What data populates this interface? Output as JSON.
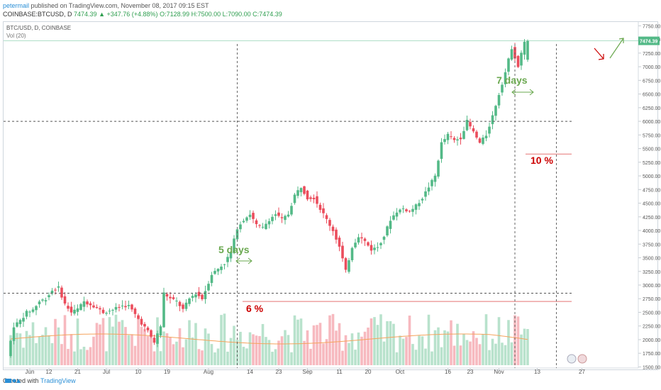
{
  "header": {
    "author": "petermail",
    "published": "published on TradingView.com, November 08, 2017 09:15 EST",
    "symbol_line_prefix": "COINBASE:BTCUSD, D",
    "last": "7474.39",
    "change": "▲ +347.76 (+4.88%)",
    "ohlc": "O:7128.99 H:7500.00 L:7090.00 C:7474.39"
  },
  "legend": {
    "title": "BTC/USD, D, COINBASE",
    "vol": "Vol (20)"
  },
  "footer": {
    "created_with": "Created with",
    "brand": "TradingView"
  },
  "colors": {
    "up": "#53b987",
    "down": "#eb4d5c",
    "vol_up": "#b8e2cc",
    "vol_down": "#f7b9bf",
    "ma": "#f5a35c",
    "annotation_green": "#6aa84f",
    "annotation_red": "#cc0000",
    "last_price": "#53b987"
  },
  "chart_data": {
    "type": "candlestick",
    "title": "BTC/USD, D, COINBASE",
    "ylim": [
      1480,
      7820
    ],
    "y_ticks": [
      1500,
      1750,
      2000,
      2250,
      2500,
      2750,
      3000,
      3250,
      3500,
      3750,
      4000,
      4250,
      4500,
      4750,
      5000,
      5250,
      5500,
      5750,
      6000,
      6250,
      6500,
      6750,
      7000,
      7250,
      7500,
      7750
    ],
    "x_ticks": [
      {
        "label": "Jun",
        "day": 6
      },
      {
        "label": "12",
        "day": 12
      },
      {
        "label": "21",
        "day": 21
      },
      {
        "label": "Jul",
        "day": 30
      },
      {
        "label": "10",
        "day": 40
      },
      {
        "label": "19",
        "day": 49
      },
      {
        "label": "Aug",
        "day": 62
      },
      {
        "label": "14",
        "day": 75
      },
      {
        "label": "23",
        "day": 84
      },
      {
        "label": "Sep",
        "day": 93
      },
      {
        "label": "11",
        "day": 103
      },
      {
        "label": "20",
        "day": 112
      },
      {
        "label": "Oct",
        "day": 122
      },
      {
        "label": "16",
        "day": 137
      },
      {
        "label": "23",
        "day": 144
      },
      {
        "label": "Nov",
        "day": 153
      },
      {
        "label": "13",
        "day": 165
      },
      {
        "label": "27",
        "day": 179
      }
    ],
    "last_price": 7474.39,
    "annotations": {
      "text_5_days": "5 days",
      "text_7_days": "7 days",
      "text_6_pct": "6 %",
      "text_10_pct": "10 %"
    },
    "levels": [
      {
        "price": 2850,
        "style": "dashed"
      },
      {
        "price": 6000,
        "style": "dashed"
      },
      {
        "price": 2700,
        "style": "solid-red"
      },
      {
        "price": 5400,
        "style": "solid-red"
      }
    ],
    "anchors": [
      {
        "price": 1700,
        "day": 0
      },
      {
        "price": 2250,
        "day": 2
      },
      {
        "price": 2350,
        "day": 4
      },
      {
        "price": 2500,
        "day": 6
      },
      {
        "price": 2550,
        "day": 8
      },
      {
        "price": 2700,
        "day": 10
      },
      {
        "price": 2750,
        "day": 12
      },
      {
        "price": 2900,
        "day": 14
      },
      {
        "price": 2950,
        "day": 16
      },
      {
        "price": 2650,
        "day": 18
      },
      {
        "price": 2500,
        "day": 20
      },
      {
        "price": 2560,
        "day": 22
      },
      {
        "price": 2700,
        "day": 24
      },
      {
        "price": 2620,
        "day": 27
      },
      {
        "price": 2500,
        "day": 30
      },
      {
        "price": 2550,
        "day": 33
      },
      {
        "price": 2620,
        "day": 36
      },
      {
        "price": 2620,
        "day": 38
      },
      {
        "price": 2380,
        "day": 41
      },
      {
        "price": 2150,
        "day": 44
      },
      {
        "price": 1950,
        "day": 46
      },
      {
        "price": 2250,
        "day": 48
      },
      {
        "price": 2850,
        "day": 49
      },
      {
        "price": 2750,
        "day": 51
      },
      {
        "price": 2700,
        "day": 53
      },
      {
        "price": 2550,
        "day": 55
      },
      {
        "price": 2750,
        "day": 57
      },
      {
        "price": 2850,
        "day": 59
      },
      {
        "price": 2750,
        "day": 61
      },
      {
        "price": 2900,
        "day": 62
      },
      {
        "price": 3200,
        "day": 64
      },
      {
        "price": 3300,
        "day": 66
      },
      {
        "price": 3400,
        "day": 68
      },
      {
        "price": 3600,
        "day": 70
      },
      {
        "price": 4050,
        "day": 72
      },
      {
        "price": 4200,
        "day": 74
      },
      {
        "price": 4300,
        "day": 76
      },
      {
        "price": 4100,
        "day": 78
      },
      {
        "price": 4050,
        "day": 80
      },
      {
        "price": 4200,
        "day": 82
      },
      {
        "price": 4300,
        "day": 84
      },
      {
        "price": 4200,
        "day": 86
      },
      {
        "price": 4300,
        "day": 88
      },
      {
        "price": 4650,
        "day": 90
      },
      {
        "price": 4800,
        "day": 92
      },
      {
        "price": 4600,
        "day": 94
      },
      {
        "price": 4600,
        "day": 96
      },
      {
        "price": 4400,
        "day": 98
      },
      {
        "price": 4200,
        "day": 100
      },
      {
        "price": 4000,
        "day": 102
      },
      {
        "price": 3700,
        "day": 104
      },
      {
        "price": 3250,
        "day": 106
      },
      {
        "price": 3700,
        "day": 108
      },
      {
        "price": 3900,
        "day": 110
      },
      {
        "price": 3800,
        "day": 112
      },
      {
        "price": 3650,
        "day": 114
      },
      {
        "price": 3700,
        "day": 116
      },
      {
        "price": 3900,
        "day": 118
      },
      {
        "price": 4200,
        "day": 120
      },
      {
        "price": 4350,
        "day": 122
      },
      {
        "price": 4400,
        "day": 124
      },
      {
        "price": 4350,
        "day": 126
      },
      {
        "price": 4450,
        "day": 128
      },
      {
        "price": 4600,
        "day": 130
      },
      {
        "price": 4800,
        "day": 132
      },
      {
        "price": 5000,
        "day": 134
      },
      {
        "price": 5600,
        "day": 136
      },
      {
        "price": 5750,
        "day": 138
      },
      {
        "price": 5650,
        "day": 140
      },
      {
        "price": 5700,
        "day": 142
      },
      {
        "price": 6000,
        "day": 144
      },
      {
        "price": 5800,
        "day": 146
      },
      {
        "price": 5600,
        "day": 148
      },
      {
        "price": 5750,
        "day": 150
      },
      {
        "price": 6100,
        "day": 152
      },
      {
        "price": 6500,
        "day": 154
      },
      {
        "price": 6900,
        "day": 156
      },
      {
        "price": 7350,
        "day": 158
      },
      {
        "price": 7000,
        "day": 160
      },
      {
        "price": 7474,
        "day": 162
      }
    ]
  }
}
